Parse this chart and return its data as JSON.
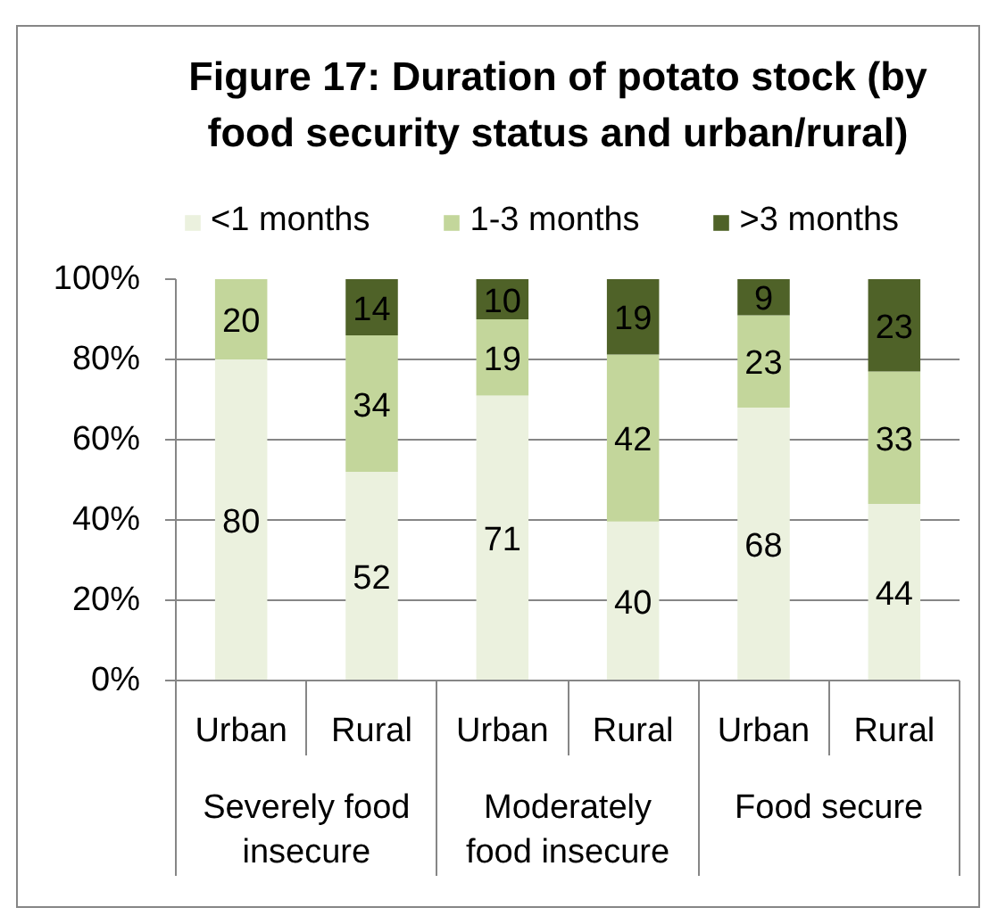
{
  "chart_data": {
    "type": "bar",
    "title": "Figure 17: Duration of potato stock (by food security status and urban/rural)",
    "categories": [
      "Urban",
      "Rural",
      "Urban",
      "Rural",
      "Urban",
      "Rural"
    ],
    "annotations": [
      "Severely food insecure",
      "Moderately food insecure",
      "Food secure"
    ],
    "stacked": true,
    "series": [
      {
        "name": "<1 months",
        "color": "#ebf1de",
        "values": [
          80,
          52,
          71,
          39.6,
          68,
          44
        ],
        "value_labels": [
          "80",
          "52",
          "71",
          "40",
          "68",
          "44"
        ]
      },
      {
        "name": "1-3 months",
        "color": "#c3d69b",
        "values": [
          20,
          34,
          19,
          41.6,
          23,
          33
        ],
        "value_labels": [
          "20",
          "34",
          "19",
          "42",
          "23",
          "33"
        ]
      },
      {
        "name": ">3 months",
        "color": "#4f6228",
        "values": [
          null,
          14,
          10,
          18.8,
          9,
          23
        ],
        "value_labels": [
          null,
          "14",
          "10",
          "19",
          "9",
          "23"
        ]
      }
    ],
    "ylim": [
      0,
      100
    ],
    "yticks": [
      {
        "value": 0,
        "label": "0%"
      },
      {
        "value": 20,
        "label": "20%"
      },
      {
        "value": 40,
        "label": "40%"
      },
      {
        "value": 60,
        "label": "60%"
      },
      {
        "value": 80,
        "label": "80%"
      },
      {
        "value": 100,
        "label": "100%"
      }
    ],
    "grid": "y",
    "legend": "top"
  }
}
